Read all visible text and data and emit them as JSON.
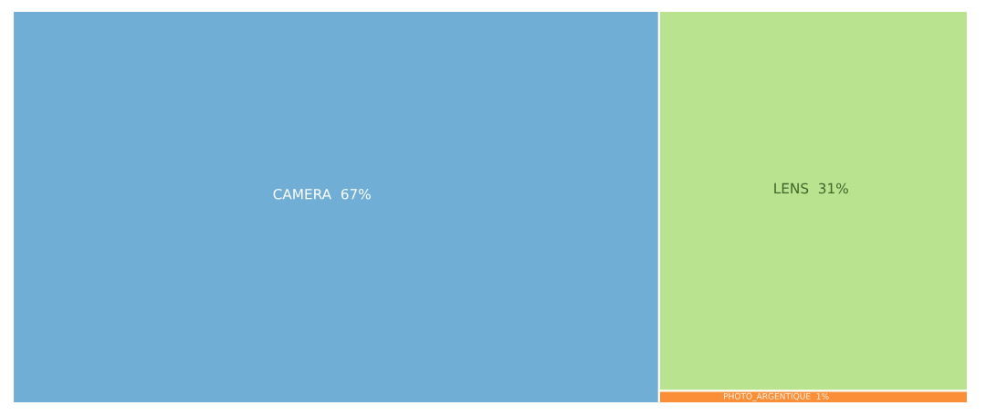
{
  "chart_data": {
    "type": "other",
    "categories": [
      "CAMERA",
      "LENS",
      "PHOTO_ARGENTIQUE"
    ],
    "values": [
      67,
      31,
      1
    ],
    "value_labels": [
      "67%",
      "31%",
      "1%"
    ],
    "colors": [
      "#71aed5",
      "#b9e38f",
      "#fa8f38"
    ]
  }
}
